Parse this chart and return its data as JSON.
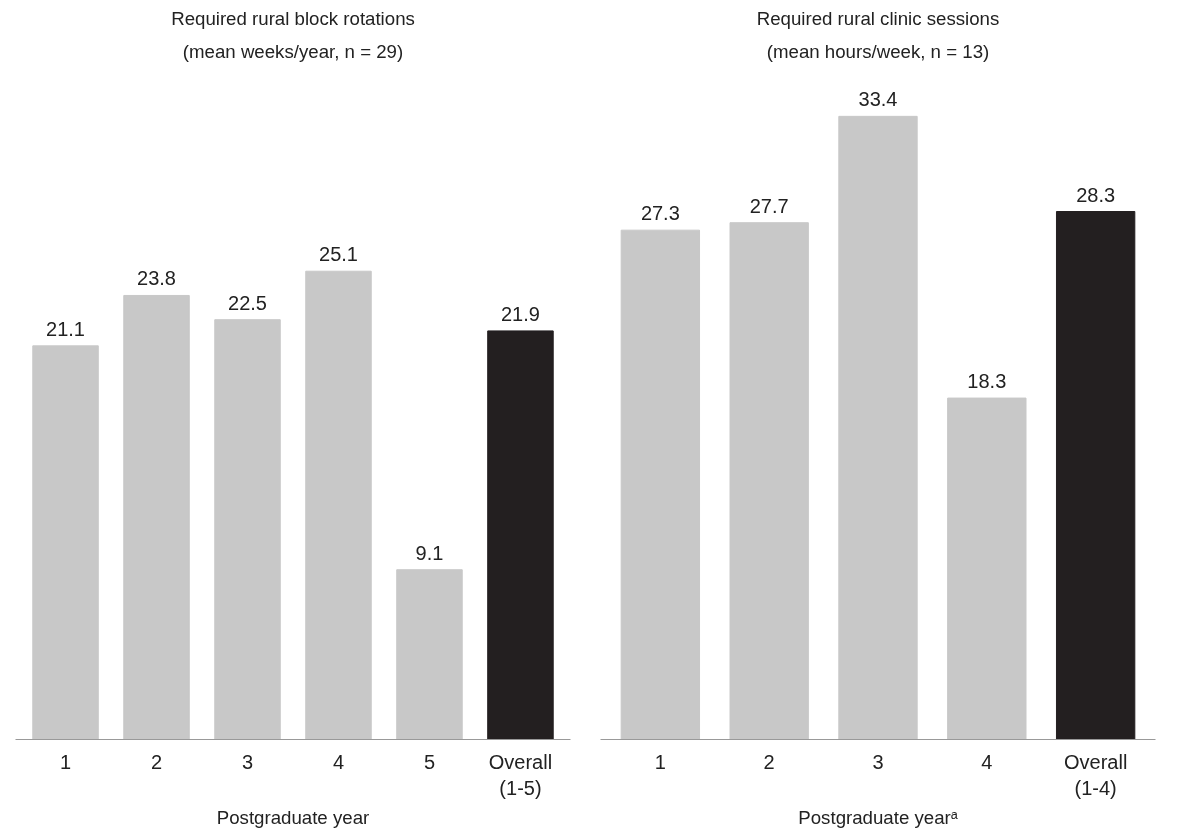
{
  "chart_data": [
    {
      "type": "bar",
      "title": "Required rural block rotations",
      "subtitle": "(mean weeks/year, n = 29)",
      "xlabel": "Postgraduate year",
      "categories": [
        "1",
        "2",
        "3",
        "4",
        "5",
        "Overall\n(1-5)"
      ],
      "values": [
        21.1,
        23.8,
        22.5,
        25.1,
        9.1,
        21.9
      ],
      "colors": [
        "#c8c8c8",
        "#c8c8c8",
        "#c8c8c8",
        "#c8c8c8",
        "#c8c8c8",
        "#231f20"
      ],
      "data_labels": true,
      "grid": false,
      "tick_labels": "x"
    },
    {
      "type": "bar",
      "title": "Required rural clinic sessions",
      "subtitle": "(mean hours/week, n = 13)",
      "xlabel": "Postgraduate yearᵃ",
      "categories": [
        "1",
        "2",
        "3",
        "4",
        "Overall\n(1-4)"
      ],
      "values": [
        27.3,
        27.7,
        33.4,
        18.3,
        28.3
      ],
      "colors": [
        "#c8c8c8",
        "#c8c8c8",
        "#c8c8c8",
        "#c8c8c8",
        "#231f20"
      ],
      "data_labels": true,
      "grid": false,
      "tick_labels": "x"
    }
  ]
}
